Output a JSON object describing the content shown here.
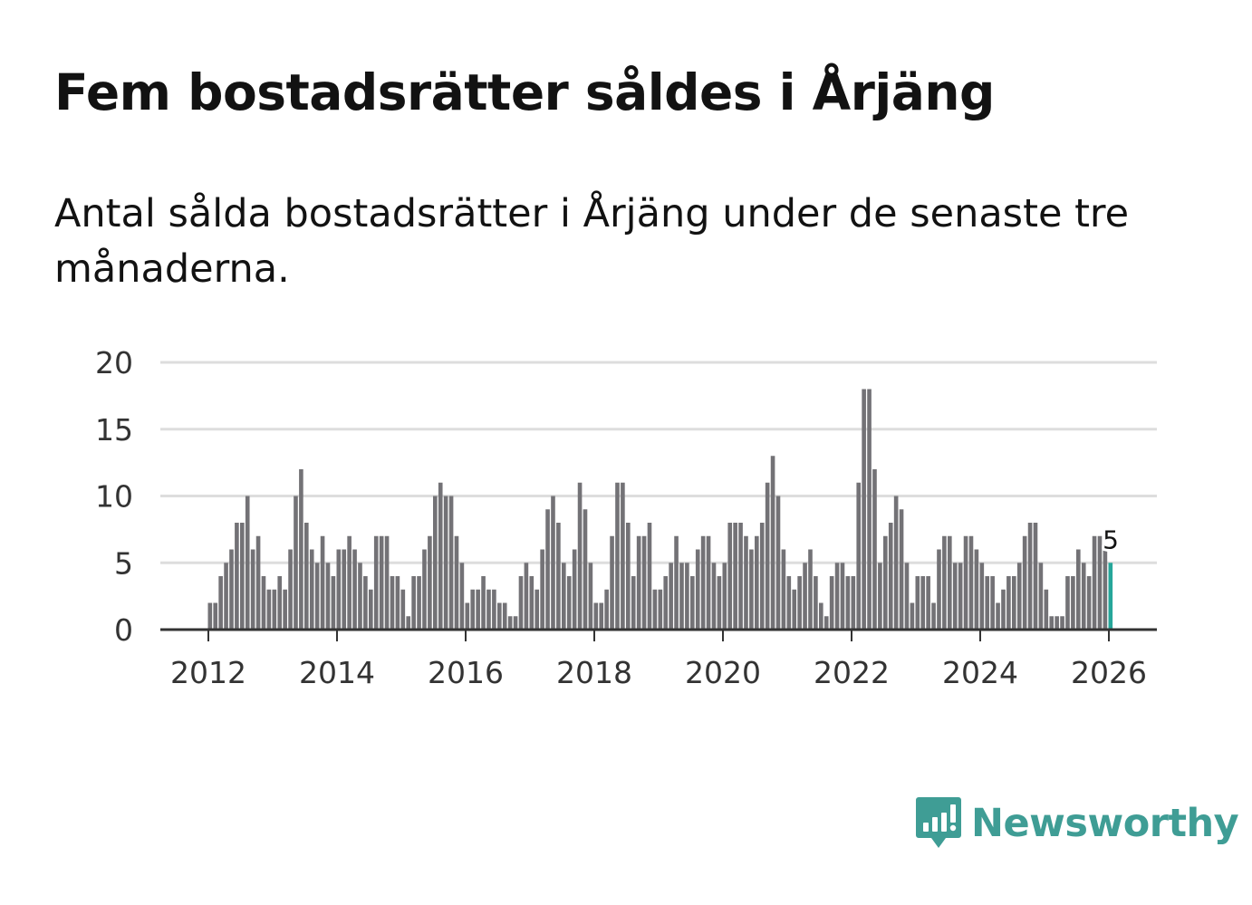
{
  "title": "Fem bostadsrätter såldes i Årjäng",
  "subtitle": "Antal sålda bostadsrätter i Årjäng under de senaste tre månaderna.",
  "brand": {
    "name": "Newsworthy",
    "color": "#3f9d95",
    "icon": "newsworthy-logo-icon"
  },
  "colors": {
    "bar": "#737276",
    "highlight": "#26a69a",
    "grid": "#dddddd",
    "axis": "#333333"
  },
  "chart_data": {
    "type": "bar",
    "title": "Fem bostadsrätter såldes i Årjäng",
    "xlabel": "",
    "ylabel": "",
    "ylim": [
      0,
      20
    ],
    "yticks": [
      0,
      5,
      10,
      15,
      20
    ],
    "xticks": [
      "2012",
      "2014",
      "2016",
      "2018",
      "2020",
      "2022",
      "2024",
      "2026"
    ],
    "start": "2012-01",
    "end": "2026-01",
    "highlight_label": "5",
    "values": [
      2,
      2,
      4,
      5,
      6,
      8,
      8,
      10,
      6,
      7,
      4,
      3,
      3,
      4,
      3,
      6,
      10,
      12,
      8,
      6,
      5,
      7,
      5,
      4,
      6,
      6,
      7,
      6,
      5,
      4,
      3,
      7,
      7,
      7,
      4,
      4,
      3,
      1,
      4,
      4,
      6,
      7,
      10,
      11,
      10,
      10,
      7,
      5,
      2,
      3,
      3,
      4,
      3,
      3,
      2,
      2,
      1,
      1,
      4,
      5,
      4,
      3,
      6,
      9,
      10,
      8,
      5,
      4,
      6,
      11,
      9,
      5,
      2,
      2,
      3,
      7,
      11,
      11,
      8,
      4,
      7,
      7,
      8,
      3,
      3,
      4,
      5,
      7,
      5,
      5,
      4,
      6,
      7,
      7,
      5,
      4,
      5,
      8,
      8,
      8,
      7,
      6,
      7,
      8,
      11,
      13,
      10,
      6,
      4,
      3,
      4,
      5,
      6,
      4,
      2,
      1,
      4,
      5,
      5,
      4,
      4,
      11,
      18,
      18,
      12,
      5,
      7,
      8,
      10,
      9,
      5,
      2,
      4,
      4,
      4,
      2,
      6,
      7,
      7,
      5,
      5,
      7,
      7,
      6,
      5,
      4,
      4,
      2,
      3,
      4,
      4,
      5,
      7,
      8,
      8,
      5,
      3,
      1,
      1,
      1,
      4,
      4,
      6,
      5,
      4,
      7,
      7,
      6,
      5
    ]
  }
}
